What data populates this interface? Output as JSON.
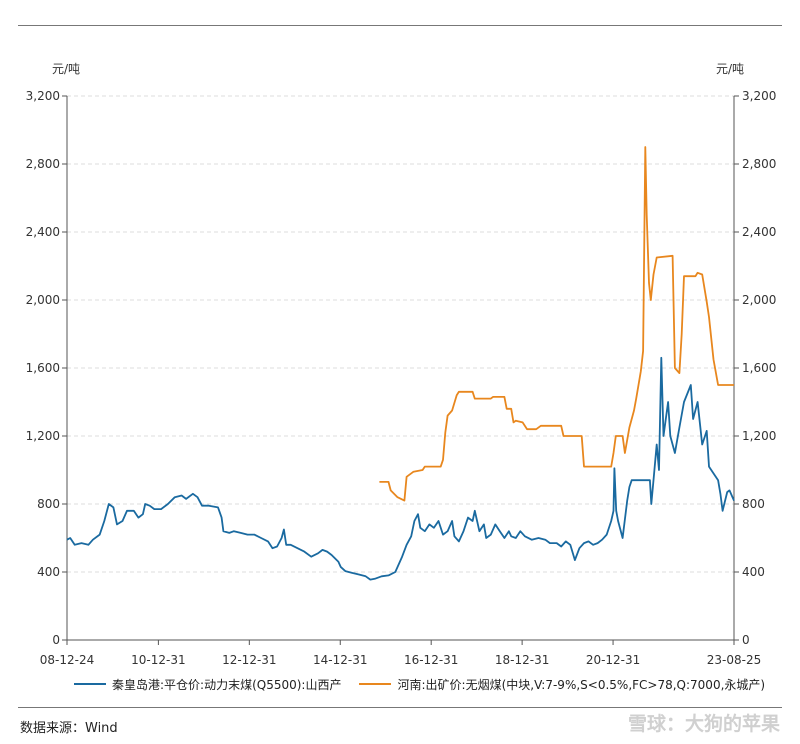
{
  "source_label": "数据来源：Wind",
  "watermark": "雪球：大狗的苹果",
  "colors": {
    "series1": "#1a6aa0",
    "series2": "#e8871e",
    "axis": "#555555",
    "grid": "#dcdcdc"
  },
  "chart_data": {
    "type": "line",
    "y_unit_left": "元/吨",
    "y_unit_right": "元/吨",
    "ylim": [
      0,
      3200
    ],
    "yticks": [
      0,
      400,
      800,
      1200,
      1600,
      2000,
      2400,
      2800,
      3200
    ],
    "ytick_labels": [
      "0",
      "400",
      "800",
      "1,200",
      "1,600",
      "2,000",
      "2,400",
      "2,800",
      "3,200"
    ],
    "xlim": [
      2008.98,
      2023.65
    ],
    "xticks": [
      2008.98,
      2010.99,
      2012.99,
      2014.99,
      2016.99,
      2018.99,
      2020.99,
      2023.65
    ],
    "xtick_labels": [
      "08-12-24",
      "10-12-31",
      "12-12-31",
      "14-12-31",
      "16-12-31",
      "18-12-31",
      "20-12-31",
      "23-08-25"
    ],
    "grid": true,
    "legend_position": "bottom",
    "series": [
      {
        "name": "秦皇岛港:平仓价:动力末煤(Q5500):山西产",
        "points": [
          [
            2008.98,
            590
          ],
          [
            2009.05,
            600
          ],
          [
            2009.15,
            560
          ],
          [
            2009.3,
            570
          ],
          [
            2009.45,
            560
          ],
          [
            2009.55,
            590
          ],
          [
            2009.7,
            620
          ],
          [
            2009.8,
            700
          ],
          [
            2009.9,
            800
          ],
          [
            2010.0,
            780
          ],
          [
            2010.08,
            680
          ],
          [
            2010.2,
            700
          ],
          [
            2010.3,
            760
          ],
          [
            2010.45,
            760
          ],
          [
            2010.55,
            720
          ],
          [
            2010.65,
            740
          ],
          [
            2010.7,
            800
          ],
          [
            2010.8,
            790
          ],
          [
            2010.9,
            770
          ],
          [
            2011.05,
            770
          ],
          [
            2011.2,
            800
          ],
          [
            2011.35,
            840
          ],
          [
            2011.5,
            850
          ],
          [
            2011.6,
            830
          ],
          [
            2011.75,
            860
          ],
          [
            2011.85,
            840
          ],
          [
            2011.95,
            790
          ],
          [
            2012.1,
            790
          ],
          [
            2012.3,
            780
          ],
          [
            2012.38,
            720
          ],
          [
            2012.42,
            640
          ],
          [
            2012.55,
            630
          ],
          [
            2012.65,
            640
          ],
          [
            2012.8,
            630
          ],
          [
            2012.95,
            620
          ],
          [
            2013.1,
            620
          ],
          [
            2013.25,
            600
          ],
          [
            2013.4,
            580
          ],
          [
            2013.5,
            540
          ],
          [
            2013.6,
            550
          ],
          [
            2013.7,
            600
          ],
          [
            2013.75,
            650
          ],
          [
            2013.8,
            560
          ],
          [
            2013.9,
            560
          ],
          [
            2014.05,
            540
          ],
          [
            2014.2,
            520
          ],
          [
            2014.35,
            490
          ],
          [
            2014.5,
            510
          ],
          [
            2014.6,
            530
          ],
          [
            2014.7,
            520
          ],
          [
            2014.8,
            500
          ],
          [
            2014.95,
            460
          ],
          [
            2015.0,
            430
          ],
          [
            2015.1,
            405
          ],
          [
            2015.25,
            395
          ],
          [
            2015.4,
            385
          ],
          [
            2015.55,
            375
          ],
          [
            2015.65,
            355
          ],
          [
            2015.75,
            360
          ],
          [
            2015.9,
            375
          ],
          [
            2016.05,
            380
          ],
          [
            2016.2,
            400
          ],
          [
            2016.35,
            490
          ],
          [
            2016.45,
            560
          ],
          [
            2016.55,
            610
          ],
          [
            2016.62,
            700
          ],
          [
            2016.7,
            740
          ],
          [
            2016.75,
            660
          ],
          [
            2016.85,
            640
          ],
          [
            2016.95,
            680
          ],
          [
            2017.05,
            660
          ],
          [
            2017.15,
            700
          ],
          [
            2017.25,
            620
          ],
          [
            2017.35,
            640
          ],
          [
            2017.45,
            700
          ],
          [
            2017.5,
            610
          ],
          [
            2017.6,
            580
          ],
          [
            2017.7,
            640
          ],
          [
            2017.8,
            720
          ],
          [
            2017.9,
            700
          ],
          [
            2017.95,
            760
          ],
          [
            2018.0,
            700
          ],
          [
            2018.05,
            640
          ],
          [
            2018.15,
            680
          ],
          [
            2018.2,
            600
          ],
          [
            2018.3,
            620
          ],
          [
            2018.4,
            680
          ],
          [
            2018.5,
            640
          ],
          [
            2018.6,
            600
          ],
          [
            2018.7,
            640
          ],
          [
            2018.75,
            610
          ],
          [
            2018.85,
            600
          ],
          [
            2018.95,
            640
          ],
          [
            2019.05,
            610
          ],
          [
            2019.2,
            590
          ],
          [
            2019.35,
            600
          ],
          [
            2019.5,
            590
          ],
          [
            2019.6,
            570
          ],
          [
            2019.75,
            570
          ],
          [
            2019.85,
            550
          ],
          [
            2019.95,
            580
          ],
          [
            2020.05,
            560
          ],
          [
            2020.15,
            470
          ],
          [
            2020.25,
            540
          ],
          [
            2020.35,
            570
          ],
          [
            2020.45,
            580
          ],
          [
            2020.55,
            560
          ],
          [
            2020.65,
            570
          ],
          [
            2020.75,
            590
          ],
          [
            2020.85,
            620
          ],
          [
            2020.95,
            700
          ],
          [
            2021.0,
            760
          ],
          [
            2021.02,
            1010
          ],
          [
            2021.06,
            760
          ],
          [
            2021.1,
            700
          ],
          [
            2021.2,
            600
          ],
          [
            2021.3,
            820
          ],
          [
            2021.35,
            900
          ],
          [
            2021.4,
            940
          ],
          [
            2021.5,
            940
          ],
          [
            2021.6,
            940
          ],
          [
            2021.7,
            940
          ],
          [
            2021.8,
            940
          ],
          [
            2021.83,
            800
          ],
          [
            2021.88,
            940
          ],
          [
            2021.95,
            1150
          ],
          [
            2022.0,
            1000
          ],
          [
            2022.05,
            1660
          ],
          [
            2022.1,
            1200
          ],
          [
            2022.2,
            1400
          ],
          [
            2022.25,
            1200
          ],
          [
            2022.35,
            1100
          ],
          [
            2022.45,
            1250
          ],
          [
            2022.55,
            1400
          ],
          [
            2022.7,
            1500
          ],
          [
            2022.75,
            1300
          ],
          [
            2022.85,
            1400
          ],
          [
            2022.95,
            1150
          ],
          [
            2023.05,
            1230
          ],
          [
            2023.1,
            1020
          ],
          [
            2023.2,
            980
          ],
          [
            2023.3,
            940
          ],
          [
            2023.35,
            860
          ],
          [
            2023.4,
            760
          ],
          [
            2023.5,
            870
          ],
          [
            2023.55,
            880
          ],
          [
            2023.65,
            820
          ]
        ]
      },
      {
        "name": "河南:出矿价:无烟煤(中块,V:7-9%,S<0.5%,FC>78,Q:7000,永城产)",
        "points": [
          [
            2015.85,
            930
          ],
          [
            2016.05,
            930
          ],
          [
            2016.1,
            880
          ],
          [
            2016.25,
            840
          ],
          [
            2016.4,
            820
          ],
          [
            2016.45,
            960
          ],
          [
            2016.6,
            990
          ],
          [
            2016.8,
            1000
          ],
          [
            2016.85,
            1020
          ],
          [
            2017.2,
            1020
          ],
          [
            2017.25,
            1060
          ],
          [
            2017.3,
            1220
          ],
          [
            2017.35,
            1320
          ],
          [
            2017.45,
            1350
          ],
          [
            2017.55,
            1440
          ],
          [
            2017.6,
            1460
          ],
          [
            2017.9,
            1460
          ],
          [
            2017.95,
            1420
          ],
          [
            2018.3,
            1420
          ],
          [
            2018.35,
            1430
          ],
          [
            2018.6,
            1430
          ],
          [
            2018.65,
            1360
          ],
          [
            2018.75,
            1360
          ],
          [
            2018.8,
            1280
          ],
          [
            2018.85,
            1290
          ],
          [
            2019.0,
            1280
          ],
          [
            2019.1,
            1240
          ],
          [
            2019.3,
            1240
          ],
          [
            2019.4,
            1260
          ],
          [
            2019.85,
            1260
          ],
          [
            2019.9,
            1200
          ],
          [
            2020.3,
            1200
          ],
          [
            2020.35,
            1020
          ],
          [
            2020.95,
            1020
          ],
          [
            2021.0,
            1100
          ],
          [
            2021.05,
            1200
          ],
          [
            2021.2,
            1200
          ],
          [
            2021.25,
            1100
          ],
          [
            2021.35,
            1250
          ],
          [
            2021.45,
            1350
          ],
          [
            2021.5,
            1420
          ],
          [
            2021.55,
            1500
          ],
          [
            2021.6,
            1580
          ],
          [
            2021.65,
            1700
          ],
          [
            2021.7,
            2900
          ],
          [
            2021.73,
            2500
          ],
          [
            2021.78,
            2100
          ],
          [
            2021.82,
            2000
          ],
          [
            2021.88,
            2150
          ],
          [
            2021.95,
            2250
          ],
          [
            2022.3,
            2260
          ],
          [
            2022.35,
            1600
          ],
          [
            2022.45,
            1570
          ],
          [
            2022.5,
            1800
          ],
          [
            2022.55,
            2140
          ],
          [
            2022.8,
            2140
          ],
          [
            2022.85,
            2160
          ],
          [
            2022.95,
            2150
          ],
          [
            2023.05,
            1990
          ],
          [
            2023.1,
            1900
          ],
          [
            2023.2,
            1650
          ],
          [
            2023.3,
            1500
          ],
          [
            2023.65,
            1500
          ]
        ]
      }
    ]
  }
}
